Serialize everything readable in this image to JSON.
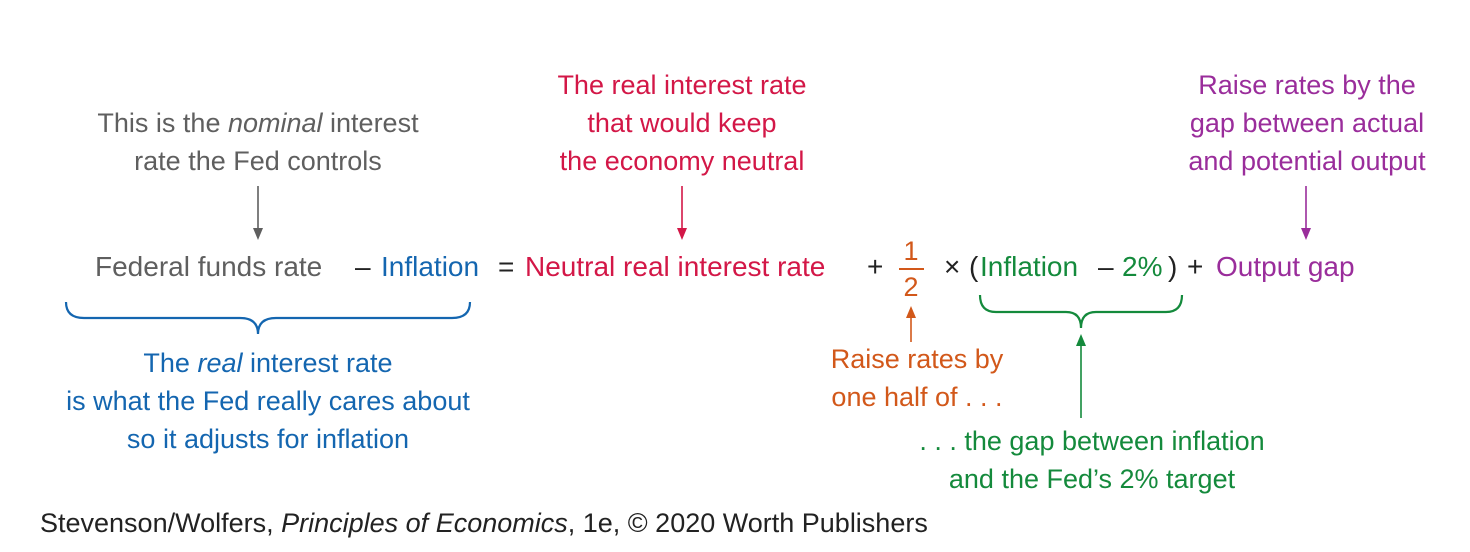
{
  "colors": {
    "gray": "#5f5f5f",
    "blue": "#1466b0",
    "red": "#d31747",
    "orange": "#d2581a",
    "green": "#148a3c",
    "purple": "#9a2d9b",
    "black": "#222222"
  },
  "annotations": {
    "nominal": {
      "pre": "This is the ",
      "em": "nominal",
      "post": " interest",
      "line2": "rate the Fed controls"
    },
    "neutral": {
      "line1": "The real interest rate",
      "line2": "that would keep",
      "line3": "the economy neutral"
    },
    "output": {
      "line1": "Raise rates by the",
      "line2": "gap between actual",
      "line3": "and potential output"
    },
    "real": {
      "pre": "The ",
      "em": "real",
      "post": " interest rate",
      "line2": "is what the Fed really cares about",
      "line3": "so it adjusts for inflation"
    },
    "half": {
      "line1": "Raise rates by",
      "line2": "one half of . . ."
    },
    "gap": {
      "line1": ". . . the gap between inflation",
      "line2": "and the Fed’s 2% target"
    }
  },
  "equation": {
    "federal_funds_rate": "Federal funds rate",
    "minus1": "–",
    "inflation": "Inflation",
    "equals": "=",
    "neutral_rate": "Neutral real interest rate",
    "plus1": "+",
    "frac_num": "1",
    "frac_den": "2",
    "times": "×",
    "open_paren": "(",
    "inflation2": "Inflation",
    "minus2": "–",
    "target": "2%",
    "close_paren": ")",
    "plus2": "+",
    "output_gap": "Output gap"
  },
  "footer": {
    "authors": "Stevenson/Wolfers, ",
    "book": "Principles of Economics",
    "rest": ", 1e, © 2020 Worth Publishers"
  }
}
